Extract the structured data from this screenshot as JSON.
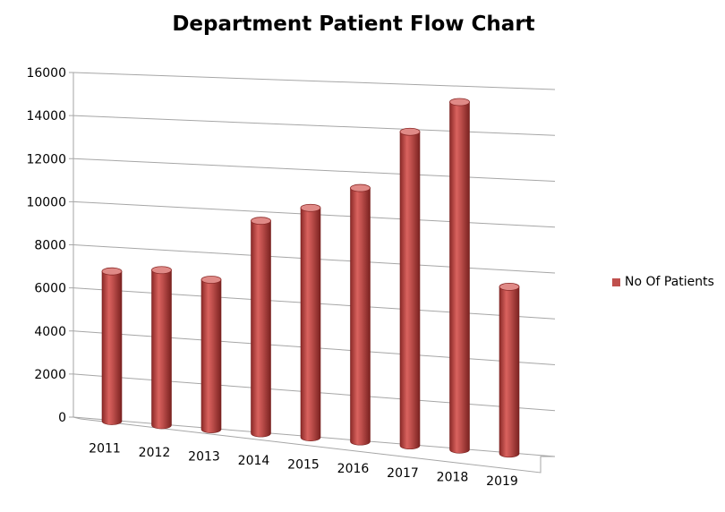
{
  "chart_data": {
    "type": "bar",
    "title": "Department Patient Flow Chart",
    "xlabel": "",
    "ylabel": "",
    "categories": [
      "2011",
      "2012",
      "2013",
      "2014",
      "2015",
      "2016",
      "2017",
      "2018",
      "2019"
    ],
    "series": [
      {
        "name": "No Of Patients",
        "values": [
          6900,
          7100,
          6800,
          9600,
          10300,
          11300,
          13900,
          15300,
          7300
        ]
      }
    ],
    "ylim": [
      0,
      16000
    ],
    "yticks": [
      "0",
      "2000",
      "4000",
      "6000",
      "8000",
      "10000",
      "12000",
      "14000",
      "16000"
    ],
    "grid": true,
    "style": "3d-cylinder",
    "legend_position": "right",
    "colors": {
      "bar": "#c0504d",
      "bar_dark": "#8b2a28",
      "bar_light": "#e08a87",
      "grid": "#a6a6a6"
    }
  }
}
